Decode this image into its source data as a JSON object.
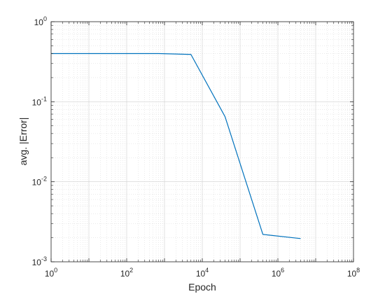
{
  "chart_data": {
    "type": "line",
    "xscale": "log",
    "yscale": "log",
    "xlim": [
      1,
      100000000
    ],
    "ylim": [
      0.001,
      1
    ],
    "xlabel": "Epoch",
    "ylabel": "avg. |Error|",
    "grid": true,
    "minor_grid": true,
    "x_ticks": [
      {
        "value": 1,
        "base": "10",
        "exp": "0"
      },
      {
        "value": 100,
        "base": "10",
        "exp": "2"
      },
      {
        "value": 10000,
        "base": "10",
        "exp": "4"
      },
      {
        "value": 1000000,
        "base": "10",
        "exp": "6"
      },
      {
        "value": 100000000,
        "base": "10",
        "exp": "8"
      }
    ],
    "y_ticks": [
      {
        "value": 0.001,
        "base": "10",
        "exp": "-3"
      },
      {
        "value": 0.01,
        "base": "10",
        "exp": "-2"
      },
      {
        "value": 0.1,
        "base": "10",
        "exp": "-1"
      },
      {
        "value": 1,
        "base": "10",
        "exp": "0"
      }
    ],
    "series": [
      {
        "color": "#0072BD",
        "x": [
          1,
          700,
          5000,
          40000,
          400000,
          4000000
        ],
        "y": [
          0.4,
          0.4,
          0.39,
          0.065,
          0.0022,
          0.00195
        ]
      }
    ]
  }
}
